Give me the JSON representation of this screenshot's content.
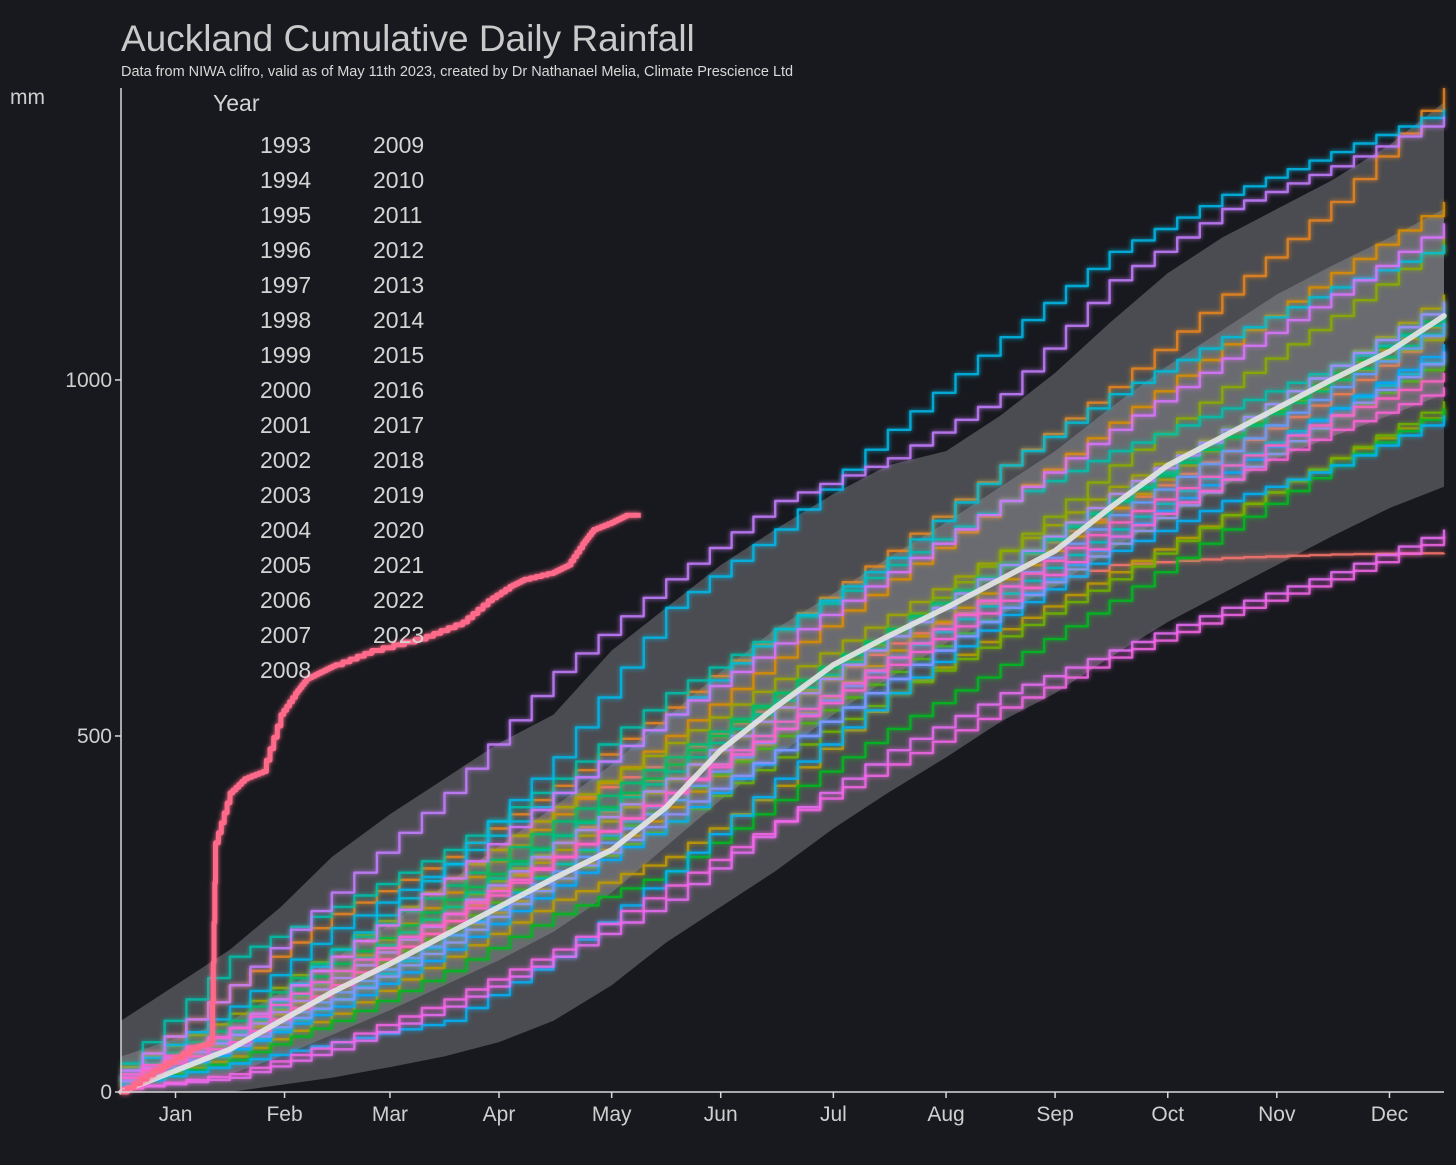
{
  "chart_data": {
    "type": "line",
    "title": "Auckland Cumulative Daily Rainfall",
    "subtitle": "Data from NIWA clifro, valid as of May 11th 2023, created by Dr Nathanael Melia, Climate Prescience Ltd",
    "xlabel": "",
    "ylabel": "mm",
    "x_unit": "day of year",
    "xlim": [
      1,
      365
    ],
    "ylim": [
      0,
      1410
    ],
    "x_ticks": [
      {
        "label": "Jan",
        "day": 16
      },
      {
        "label": "Feb",
        "day": 46
      },
      {
        "label": "Mar",
        "day": 75
      },
      {
        "label": "Apr",
        "day": 105
      },
      {
        "label": "May",
        "day": 136
      },
      {
        "label": "Jun",
        "day": 166
      },
      {
        "label": "Jul",
        "day": 197
      },
      {
        "label": "Aug",
        "day": 228
      },
      {
        "label": "Sep",
        "day": 258
      },
      {
        "label": "Oct",
        "day": 289
      },
      {
        "label": "Nov",
        "day": 319
      },
      {
        "label": "Dec",
        "day": 350
      }
    ],
    "y_ticks": [
      0,
      500,
      1000
    ],
    "grid": false,
    "legend": {
      "title": "Year",
      "placement": "top-left",
      "columns": 2
    },
    "bands": {
      "x": [
        1,
        31,
        45,
        59,
        75,
        90,
        105,
        120,
        136,
        151,
        166,
        181,
        197,
        212,
        228,
        243,
        258,
        273,
        289,
        304,
        319,
        334,
        350,
        365
      ],
      "outer_low": [
        0,
        0,
        10,
        20,
        35,
        50,
        70,
        100,
        150,
        210,
        260,
        310,
        370,
        420,
        470,
        520,
        560,
        610,
        660,
        700,
        740,
        780,
        820,
        850
      ],
      "outer_high": [
        100,
        200,
        260,
        330,
        390,
        440,
        490,
        530,
        620,
        680,
        740,
        790,
        840,
        880,
        900,
        950,
        1010,
        1080,
        1150,
        1200,
        1240,
        1280,
        1330,
        1390
      ],
      "inner_low": [
        0,
        25,
        50,
        80,
        115,
        150,
        185,
        225,
        280,
        345,
        410,
        470,
        530,
        580,
        630,
        670,
        710,
        760,
        810,
        850,
        890,
        920,
        950,
        980
      ],
      "inner_high": [
        50,
        100,
        140,
        185,
        235,
        290,
        345,
        400,
        460,
        525,
        590,
        650,
        700,
        750,
        800,
        850,
        900,
        960,
        1020,
        1070,
        1120,
        1160,
        1200,
        1240
      ]
    },
    "mean_series": {
      "x": [
        1,
        31,
        45,
        59,
        75,
        90,
        105,
        120,
        136,
        151,
        166,
        181,
        197,
        212,
        228,
        243,
        258,
        273,
        289,
        304,
        319,
        334,
        350,
        365
      ],
      "values": [
        0,
        60,
        100,
        140,
        180,
        220,
        260,
        300,
        340,
        400,
        480,
        540,
        600,
        640,
        680,
        720,
        760,
        820,
        880,
        920,
        960,
        1000,
        1040,
        1090
      ]
    },
    "x": [
      1,
      31,
      59,
      90,
      120,
      151,
      181,
      212,
      243,
      273,
      304,
      334,
      365
    ],
    "series": [
      {
        "name": "1993",
        "color": "#f8766d",
        "values": [
          8,
          90,
          190,
          300,
          400,
          470,
          550,
          630,
          700,
          740,
          750,
          755,
          757
        ]
      },
      {
        "name": "1994",
        "color": "#f17d4e",
        "values": [
          10,
          65,
          150,
          240,
          350,
          460,
          560,
          650,
          740,
          820,
          900,
          980,
          1080
        ]
      },
      {
        "name": "1995",
        "color": "#e7851c",
        "values": [
          30,
          150,
          250,
          330,
          430,
          540,
          650,
          760,
          880,
          990,
          1120,
          1250,
          1410
        ]
      },
      {
        "name": "1996",
        "color": "#db8e00",
        "values": [
          12,
          80,
          170,
          280,
          390,
          500,
          610,
          720,
          830,
          940,
          1050,
          1150,
          1250
        ]
      },
      {
        "name": "1997",
        "color": "#ce9500",
        "values": [
          15,
          70,
          140,
          220,
          300,
          400,
          510,
          620,
          720,
          820,
          920,
          1010,
          1090
        ]
      },
      {
        "name": "1998",
        "color": "#c09b00",
        "values": [
          10,
          50,
          110,
          190,
          270,
          330,
          430,
          560,
          650,
          730,
          810,
          890,
          960
        ]
      },
      {
        "name": "1999",
        "color": "#b0a100",
        "values": [
          20,
          75,
          160,
          250,
          340,
          440,
          540,
          640,
          740,
          840,
          930,
          1020,
          1120
        ]
      },
      {
        "name": "2000",
        "color": "#9ea700",
        "values": [
          35,
          110,
          200,
          300,
          400,
          490,
          580,
          670,
          760,
          850,
          930,
          1000,
          1070
        ]
      },
      {
        "name": "2001",
        "color": "#89ac00",
        "values": [
          20,
          80,
          170,
          260,
          350,
          440,
          540,
          650,
          760,
          880,
          990,
          1090,
          1200
        ]
      },
      {
        "name": "2002",
        "color": "#6fb100",
        "values": [
          10,
          60,
          130,
          210,
          300,
          380,
          470,
          560,
          640,
          720,
          810,
          890,
          970
        ]
      },
      {
        "name": "2003",
        "color": "#4cb40f",
        "values": [
          15,
          70,
          150,
          230,
          320,
          410,
          500,
          590,
          680,
          770,
          860,
          950,
          1030
        ]
      },
      {
        "name": "2004",
        "color": "#00b81f",
        "values": [
          10,
          45,
          100,
          170,
          250,
          310,
          410,
          510,
          600,
          690,
          790,
          880,
          960
        ]
      },
      {
        "name": "2005",
        "color": "#00bb4e",
        "values": [
          20,
          90,
          180,
          270,
          360,
          460,
          560,
          650,
          740,
          830,
          920,
          1010,
          1100
        ]
      },
      {
        "name": "2006",
        "color": "#00bd70",
        "values": [
          25,
          100,
          200,
          290,
          380,
          470,
          560,
          650,
          740,
          830,
          920,
          1000,
          1080
        ]
      },
      {
        "name": "2007",
        "color": "#00bf8e",
        "values": [
          15,
          85,
          170,
          260,
          360,
          450,
          550,
          640,
          740,
          830,
          930,
          1020,
          1110
        ]
      },
      {
        "name": "2008",
        "color": "#00c0a9",
        "values": [
          40,
          190,
          260,
          340,
          440,
          560,
          650,
          740,
          830,
          900,
          960,
          1020,
          1090
        ]
      },
      {
        "name": "2009",
        "color": "#00c0c2",
        "values": [
          15,
          60,
          130,
          220,
          320,
          420,
          520,
          610,
          700,
          790,
          880,
          960,
          1040
        ]
      },
      {
        "name": "2010",
        "color": "#00bdd7",
        "values": [
          20,
          80,
          200,
          320,
          420,
          530,
          650,
          750,
          880,
          980,
          1060,
          1130,
          1190
        ]
      },
      {
        "name": "2011",
        "color": "#00b9e9",
        "values": [
          30,
          120,
          230,
          320,
          470,
          680,
          790,
          930,
          1060,
          1180,
          1260,
          1320,
          1380
        ]
      },
      {
        "name": "2012",
        "color": "#00b3f7",
        "values": [
          10,
          40,
          70,
          100,
          190,
          310,
          440,
          560,
          670,
          760,
          830,
          880,
          950
        ]
      },
      {
        "name": "2013",
        "color": "#00abfe",
        "values": [
          15,
          60,
          120,
          200,
          290,
          380,
          480,
          580,
          680,
          780,
          870,
          960,
          1050
        ]
      },
      {
        "name": "2014",
        "color": "#619cff",
        "values": [
          20,
          70,
          140,
          220,
          310,
          410,
          510,
          610,
          710,
          810,
          900,
          990,
          1080
        ]
      },
      {
        "name": "2015",
        "color": "#8b93ff",
        "values": [
          15,
          65,
          130,
          210,
          300,
          390,
          480,
          580,
          680,
          770,
          860,
          950,
          1040
        ]
      },
      {
        "name": "2016",
        "color": "#ab88ff",
        "values": [
          20,
          80,
          160,
          250,
          350,
          440,
          540,
          640,
          740,
          840,
          930,
          1020,
          1110
        ]
      },
      {
        "name": "2017",
        "color": "#c47dff",
        "values": [
          30,
          150,
          280,
          420,
          590,
          720,
          830,
          890,
          980,
          1140,
          1240,
          1300,
          1370
        ]
      },
      {
        "name": "2018",
        "color": "#d874fd",
        "values": [
          20,
          90,
          190,
          300,
          420,
          530,
          630,
          730,
          830,
          930,
          1030,
          1120,
          1220
        ]
      },
      {
        "name": "2019",
        "color": "#e76cf3",
        "values": [
          5,
          20,
          60,
          120,
          190,
          270,
          380,
          480,
          560,
          620,
          680,
          730,
          790
        ]
      },
      {
        "name": "2020",
        "color": "#f365e6",
        "values": [
          5,
          25,
          70,
          130,
          200,
          290,
          380,
          460,
          540,
          610,
          670,
          720,
          780
        ]
      },
      {
        "name": "2021",
        "color": "#fb61d7",
        "values": [
          25,
          90,
          170,
          250,
          330,
          420,
          510,
          600,
          690,
          780,
          860,
          930,
          990
        ]
      },
      {
        "name": "2022",
        "color": "#ff62c6",
        "values": [
          20,
          70,
          150,
          240,
          330,
          420,
          520,
          610,
          710,
          800,
          880,
          950,
          1010
        ]
      },
      {
        "name": "2023",
        "color": "#ff6a8a",
        "highlight": true,
        "x": [
          1,
          10,
          20,
          26,
          27,
          31,
          35,
          40,
          45,
          49,
          52,
          56,
          60,
          70,
          85,
          95,
          102,
          108,
          112,
          120,
          124,
          128,
          131,
          136,
          140,
          144
        ],
        "values": [
          0,
          30,
          60,
          70,
          350,
          420,
          440,
          450,
          530,
          560,
          580,
          590,
          600,
          620,
          640,
          660,
          690,
          710,
          720,
          730,
          740,
          770,
          790,
          800,
          810,
          810
        ]
      }
    ]
  }
}
